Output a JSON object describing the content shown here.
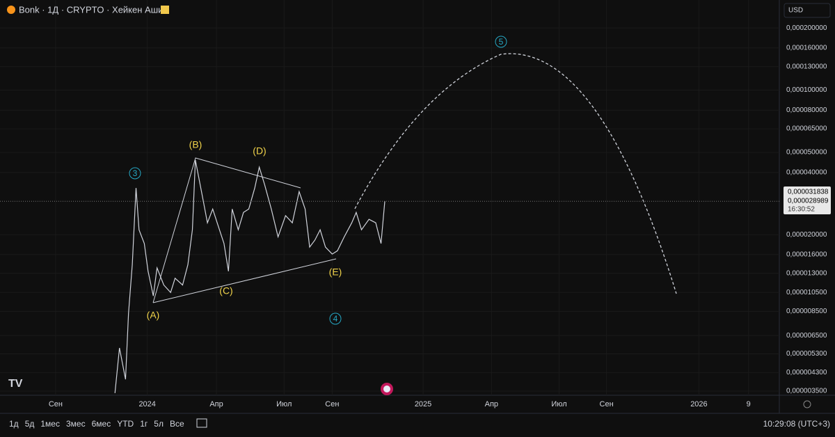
{
  "header": {
    "symbol": "Bonk · 1Д · CRYPTO · Хейкен Аши",
    "currency": "USD"
  },
  "chart_data": {
    "type": "line",
    "log_scale": true,
    "grid": true,
    "color": "#d1d4dc",
    "x": [
      153,
      159,
      167,
      171,
      176,
      181,
      185,
      192,
      197,
      204,
      209,
      218,
      227,
      233,
      243,
      250,
      256,
      260,
      269,
      276,
      283,
      292,
      298,
      304,
      309,
      317,
      324,
      331,
      339,
      345,
      352,
      361,
      370,
      380,
      389,
      398,
      406,
      412,
      419,
      426,
      433,
      442,
      449,
      458,
      468,
      474,
      481,
      491,
      500,
      507,
      512
    ],
    "values": [
      3.42e-06,
      5.66e-06,
      3.99e-06,
      8.33e-06,
      1.43e-05,
      3.36e-05,
      2.11e-05,
      1.81e-05,
      1.33e-05,
      1.01e-05,
      1.38e-05,
      1.14e-05,
      1.05e-05,
      1.23e-05,
      1.14e-05,
      1.43e-05,
      2.11e-05,
      4.59e-05,
      3.11e-05,
      2.28e-05,
      2.66e-05,
      2.11e-05,
      1.81e-05,
      1.33e-05,
      2.66e-05,
      2.11e-05,
      2.56e-05,
      2.66e-05,
      3.36e-05,
      4.24e-05,
      3.5e-05,
      2.66e-05,
      1.95e-05,
      2.47e-05,
      2.28e-05,
      3.23e-05,
      2.66e-05,
      1.74e-05,
      1.88e-05,
      2.11e-05,
      1.74e-05,
      1.61e-05,
      1.67e-05,
      1.95e-05,
      2.28e-05,
      2.56e-05,
      2.11e-05,
      2.37e-05,
      2.28e-05,
      1.81e-05,
      2.9e-05
    ],
    "xlim": [
      0,
      1037
    ],
    "xticks": [
      {
        "value": 74,
        "label": "Сен"
      },
      {
        "value": 196,
        "label": "2024"
      },
      {
        "value": 288,
        "label": "Апр"
      },
      {
        "value": 378,
        "label": "Июл"
      },
      {
        "value": 442,
        "label": "Сен"
      },
      {
        "value": 563,
        "label": "2025"
      },
      {
        "value": 654,
        "label": "Апр"
      },
      {
        "value": 744,
        "label": "Июл"
      },
      {
        "value": 807,
        "label": "Сен"
      },
      {
        "value": 930,
        "label": "2026"
      },
      {
        "value": 996,
        "label": "9"
      }
    ],
    "ylim": [
      3.34e-06,
      0.000273
    ],
    "yticks": [
      {
        "value": 0.0002,
        "label": "0,000200000"
      },
      {
        "value": 0.00016,
        "label": "0,000160000"
      },
      {
        "value": 0.00013,
        "label": "0,000130000"
      },
      {
        "value": 0.0001,
        "label": "0,000100000"
      },
      {
        "value": 8e-05,
        "label": "0,000080000"
      },
      {
        "value": 6.5e-05,
        "label": "0,000065000"
      },
      {
        "value": 5e-05,
        "label": "0,000050000"
      },
      {
        "value": 4e-05,
        "label": "0,000040000"
      },
      {
        "value": 2e-05,
        "label": "0,000020000"
      },
      {
        "value": 1.6e-05,
        "label": "0,000016000"
      },
      {
        "value": 1.3e-05,
        "label": "0,000013000"
      },
      {
        "value": 1.05e-05,
        "label": "0,000010500"
      },
      {
        "value": 8.5e-06,
        "label": "0,000008500"
      },
      {
        "value": 6.5e-06,
        "label": "0,000006500"
      },
      {
        "value": 5.3e-06,
        "label": "0,000005300"
      },
      {
        "value": 4.3e-06,
        "label": "0,000004300"
      },
      {
        "value": 3.5e-06,
        "label": "0,000003500"
      }
    ],
    "annotations": [
      "3",
      "(A)",
      "(B)",
      "(C)",
      "(D)",
      "(E)",
      "4",
      "5"
    ]
  },
  "price_badges": [
    "0,000031838",
    "0,000028989",
    "16:30:52"
  ],
  "toolbar": {
    "ranges": [
      "1д",
      "5д",
      "1мес",
      "3мес",
      "6мес",
      "YTD",
      "1г",
      "5л",
      "Все"
    ],
    "clock": "10:29:08 (UTC+3)"
  }
}
